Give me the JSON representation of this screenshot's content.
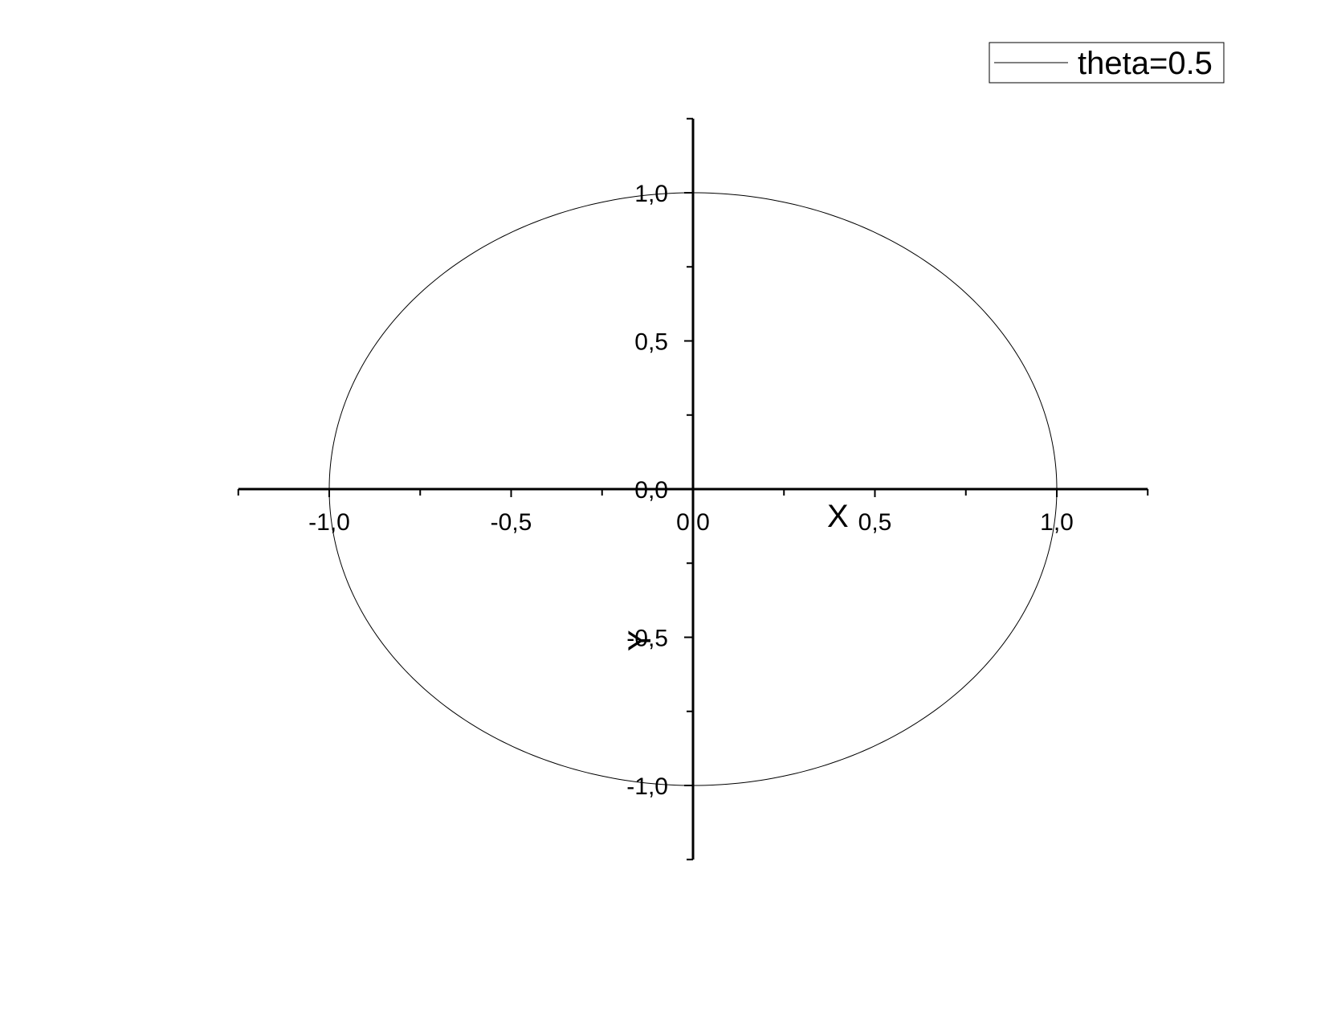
{
  "chart_data": {
    "type": "line",
    "xlabel": "X",
    "ylabel": "Y",
    "xlim": [
      -1.25,
      1.25
    ],
    "ylim": [
      -1.25,
      1.25
    ],
    "x_ticks": [
      -1.0,
      -0.5,
      0.0,
      0.5,
      1.0
    ],
    "x_tick_labels": [
      "-1,0",
      "-0,5",
      "0,0",
      "0,5",
      "1,0"
    ],
    "y_ticks": [
      -1.0,
      -0.5,
      0.0,
      0.5,
      1.0
    ],
    "y_tick_labels": [
      "-1,0",
      "-0,5",
      "0,0",
      "0,5",
      "1,0"
    ],
    "axes_cross_at_origin": true,
    "grid": false,
    "legend_position": "top-right",
    "series": [
      {
        "name": "theta=0.5",
        "color": "#000000",
        "shape": "ellipse",
        "center": [
          0,
          0
        ],
        "semi_axis_x": 1.0,
        "semi_axis_y": 1.0
      }
    ]
  }
}
